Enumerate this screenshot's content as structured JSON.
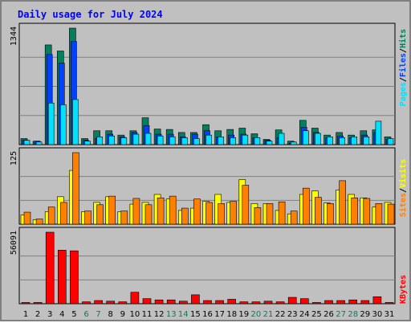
{
  "title": "Daily usage for July 2024",
  "colors": {
    "background": "#C0C0C0",
    "plot_bg": "#C0C0C0",
    "title": "#0000FF",
    "hits": "#00805C",
    "files": "#0040FF",
    "pages": "#00E0FF",
    "visits": "#FFFF00",
    "sites": "#FF8000",
    "kbytes": "#FF0000",
    "weekday_label": "#000000",
    "weekend_label": "#00805C",
    "grid": "#808080"
  },
  "chart_data": [
    {
      "type": "bar",
      "name": "hits-files-pages",
      "ymax_label": "1344",
      "ylim": [
        0,
        1344
      ],
      "series_labels": [
        "Hits",
        "/",
        "Files",
        "/",
        "Pages"
      ],
      "categories": [
        "1",
        "2",
        "3",
        "4",
        "5",
        "6",
        "7",
        "8",
        "9",
        "10",
        "11",
        "12",
        "13",
        "14",
        "15",
        "16",
        "17",
        "18",
        "19",
        "20",
        "21",
        "22",
        "23",
        "24",
        "25",
        "26",
        "27",
        "28",
        "29",
        "30",
        "31"
      ],
      "series": [
        {
          "name": "Hits",
          "values": [
            70,
            40,
            1150,
            1080,
            1344,
            70,
            160,
            160,
            110,
            160,
            310,
            180,
            175,
            140,
            140,
            230,
            160,
            175,
            190,
            125,
            60,
            170,
            40,
            280,
            190,
            110,
            140,
            110,
            160,
            170,
            90
          ]
        },
        {
          "name": "Files",
          "values": [
            50,
            40,
            1040,
            940,
            1190,
            50,
            70,
            120,
            90,
            140,
            220,
            120,
            120,
            90,
            120,
            160,
            90,
            110,
            120,
            80,
            50,
            80,
            20,
            200,
            140,
            80,
            100,
            80,
            110,
            140,
            60
          ]
        },
        {
          "name": "Pages",
          "values": [
            50,
            30,
            480,
            460,
            520,
            40,
            90,
            100,
            80,
            120,
            130,
            100,
            90,
            80,
            70,
            110,
            90,
            80,
            110,
            80,
            40,
            130,
            30,
            160,
            130,
            90,
            80,
            90,
            90,
            270,
            70
          ]
        }
      ]
    },
    {
      "type": "bar",
      "name": "visits-sites",
      "ymax_label": "125",
      "ylim": [
        0,
        125
      ],
      "series_labels": [
        "Sites",
        "/",
        "Visits"
      ],
      "categories": [
        "1",
        "2",
        "3",
        "4",
        "5",
        "6",
        "7",
        "8",
        "9",
        "10",
        "11",
        "12",
        "13",
        "14",
        "15",
        "16",
        "17",
        "18",
        "19",
        "20",
        "21",
        "22",
        "23",
        "24",
        "25",
        "26",
        "27",
        "28",
        "29",
        "30",
        "31"
      ],
      "series": [
        {
          "name": "Visits",
          "values": [
            16,
            8,
            22,
            48,
            94,
            22,
            38,
            48,
            22,
            35,
            38,
            52,
            44,
            24,
            28,
            40,
            52,
            38,
            78,
            36,
            36,
            24,
            18,
            52,
            58,
            37,
            60,
            52,
            46,
            30,
            38
          ]
        },
        {
          "name": "Sites",
          "values": [
            21,
            9,
            30,
            38,
            125,
            23,
            34,
            49,
            23,
            45,
            34,
            46,
            49,
            28,
            44,
            38,
            36,
            40,
            68,
            29,
            36,
            39,
            23,
            63,
            47,
            36,
            76,
            46,
            45,
            36,
            35
          ]
        }
      ]
    },
    {
      "type": "bar",
      "name": "kbytes",
      "ymax_label": "56091",
      "ylim": [
        0,
        56091
      ],
      "series_labels": [
        "KBytes"
      ],
      "categories": [
        "1",
        "2",
        "3",
        "4",
        "5",
        "6",
        "7",
        "8",
        "9",
        "10",
        "11",
        "12",
        "13",
        "14",
        "15",
        "16",
        "17",
        "18",
        "19",
        "20",
        "21",
        "22",
        "23",
        "24",
        "25",
        "26",
        "27",
        "28",
        "29",
        "30",
        "31"
      ],
      "series": [
        {
          "name": "KBytes",
          "values": [
            1000,
            1000,
            56091,
            42000,
            41500,
            1500,
            2500,
            2000,
            1500,
            9000,
            4000,
            3000,
            3000,
            2000,
            7000,
            2500,
            2500,
            3500,
            1500,
            1500,
            2000,
            1500,
            5000,
            4000,
            1000,
            2500,
            2500,
            3000,
            2500,
            5500,
            1000
          ]
        }
      ]
    }
  ],
  "day_labels": [
    {
      "text": "1",
      "weekend": false
    },
    {
      "text": "2",
      "weekend": false
    },
    {
      "text": "3",
      "weekend": false
    },
    {
      "text": "4",
      "weekend": false
    },
    {
      "text": "5",
      "weekend": false
    },
    {
      "text": "6",
      "weekend": true
    },
    {
      "text": "7",
      "weekend": true
    },
    {
      "text": "8",
      "weekend": false
    },
    {
      "text": "9",
      "weekend": false
    },
    {
      "text": "10",
      "weekend": false
    },
    {
      "text": "11",
      "weekend": false
    },
    {
      "text": "12",
      "weekend": false
    },
    {
      "text": "13",
      "weekend": true
    },
    {
      "text": "14",
      "weekend": true
    },
    {
      "text": "15",
      "weekend": false
    },
    {
      "text": "16",
      "weekend": false
    },
    {
      "text": "17",
      "weekend": false
    },
    {
      "text": "18",
      "weekend": false
    },
    {
      "text": "19",
      "weekend": false
    },
    {
      "text": "20",
      "weekend": true
    },
    {
      "text": "21",
      "weekend": true
    },
    {
      "text": "22",
      "weekend": false
    },
    {
      "text": "23",
      "weekend": false
    },
    {
      "text": "24",
      "weekend": false
    },
    {
      "text": "25",
      "weekend": false
    },
    {
      "text": "26",
      "weekend": false
    },
    {
      "text": "27",
      "weekend": true
    },
    {
      "text": "28",
      "weekend": true
    },
    {
      "text": "29",
      "weekend": false
    },
    {
      "text": "30",
      "weekend": false
    },
    {
      "text": "31",
      "weekend": false
    }
  ]
}
